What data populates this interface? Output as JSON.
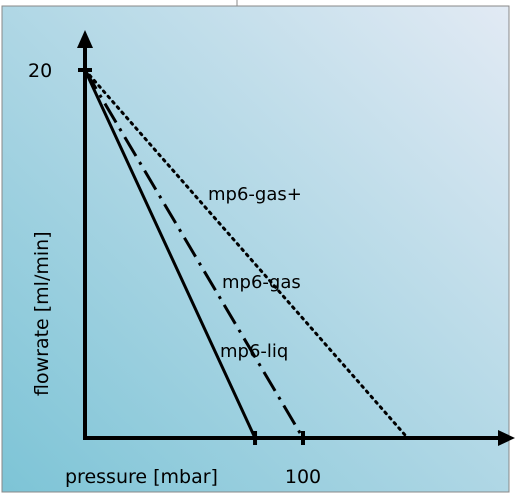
{
  "chart_data": {
    "type": "line",
    "title": "",
    "xlabel": "pressure [mbar]",
    "ylabel": "flowrate [ml/min]",
    "xlim": [
      0,
      180
    ],
    "ylim": [
      0,
      20
    ],
    "x_ticks": [
      {
        "value": 100,
        "label": "100"
      }
    ],
    "y_ticks": [
      {
        "value": 20,
        "label": "20"
      }
    ],
    "unlabeled_x_ticks": [
      78
    ],
    "series": [
      {
        "name": "mp6-liq",
        "style": "solid",
        "x": [
          0,
          78
        ],
        "y": [
          20,
          0
        ]
      },
      {
        "name": "mp6-gas",
        "style": "dash-dot",
        "x": [
          0,
          100
        ],
        "y": [
          20,
          0
        ]
      },
      {
        "name": "mp6-gas+",
        "style": "dotted",
        "x": [
          0,
          148
        ],
        "y": [
          20,
          0
        ]
      }
    ],
    "grid": false,
    "legend": "none"
  },
  "colors": {
    "background_top": "#e2eaf4",
    "background_bottom": "#7dc4d6",
    "axis": "#000000",
    "line": "#000000"
  }
}
